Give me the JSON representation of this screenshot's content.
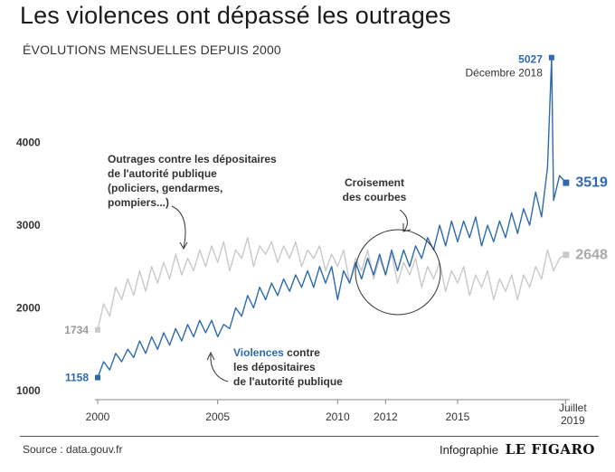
{
  "header": {
    "title": "Les violences ont dépassé les outrages",
    "subtitle": "ÉVOLUTIONS MENSUELLES DEPUIS 2000"
  },
  "footer": {
    "source": "Source : data.gouv.fr",
    "credit_prefix": "Infographie",
    "credit_brand": "LE FIGARO"
  },
  "chart_data": {
    "type": "line",
    "title": "Les violences ont dépassé les outrages",
    "subtitle": "ÉVOLUTIONS MENSUELLES DEPUIS 2000",
    "ylim": [
      1000,
      5100
    ],
    "yticks": [
      1000,
      2000,
      3000,
      4000
    ],
    "xlim": [
      2000,
      2019.6
    ],
    "xticks": [
      {
        "value": 2000,
        "label": "2000"
      },
      {
        "value": 2005,
        "label": "2005"
      },
      {
        "value": 2010,
        "label": "2010"
      },
      {
        "value": 2012,
        "label": "2012"
      },
      {
        "value": 2015,
        "label": "2015"
      }
    ],
    "x_end_label": [
      "Juillet",
      "2019"
    ],
    "grid": false,
    "colors": {
      "violences": "#2e6aad",
      "outrages": "#c9c9c9",
      "axis": "#888888"
    },
    "series": [
      {
        "key": "outrages",
        "name": "Outrages contre les dépositaires de l'autorité publique",
        "name_lines": [
          "Outrages contre les dépositaires",
          "de l'autorité publique",
          "(policiers, gendarmes,",
          "pompiers...)"
        ],
        "start_label": "1734",
        "end_label": "2648",
        "x_step": 0.25,
        "x": [
          2000.0,
          2000.25,
          2000.5,
          2000.75,
          2001.0,
          2001.25,
          2001.5,
          2001.75,
          2002.0,
          2002.25,
          2002.5,
          2002.75,
          2003.0,
          2003.25,
          2003.5,
          2003.75,
          2004.0,
          2004.25,
          2004.5,
          2004.75,
          2005.0,
          2005.25,
          2005.5,
          2005.75,
          2006.0,
          2006.25,
          2006.5,
          2006.75,
          2007.0,
          2007.25,
          2007.5,
          2007.75,
          2008.0,
          2008.25,
          2008.5,
          2008.75,
          2009.0,
          2009.25,
          2009.5,
          2009.75,
          2010.0,
          2010.25,
          2010.5,
          2010.75,
          2011.0,
          2011.25,
          2011.5,
          2011.75,
          2012.0,
          2012.25,
          2012.5,
          2012.75,
          2013.0,
          2013.25,
          2013.5,
          2013.75,
          2014.0,
          2014.25,
          2014.5,
          2014.75,
          2015.0,
          2015.25,
          2015.5,
          2015.75,
          2016.0,
          2016.25,
          2016.5,
          2016.75,
          2017.0,
          2017.25,
          2017.5,
          2017.75,
          2018.0,
          2018.25,
          2018.5,
          2018.75,
          2019.0,
          2019.25,
          2019.5
        ],
        "values": [
          1734,
          2050,
          1900,
          2250,
          2100,
          2350,
          2150,
          2450,
          2200,
          2500,
          2300,
          2550,
          2350,
          2650,
          2400,
          2600,
          2450,
          2700,
          2500,
          2750,
          2550,
          2800,
          2450,
          2700,
          2600,
          2850,
          2500,
          2750,
          2650,
          2800,
          2550,
          2750,
          2600,
          2800,
          2500,
          2700,
          2600,
          2750,
          2450,
          2650,
          2500,
          2700,
          2300,
          2600,
          2450,
          2700,
          2350,
          2600,
          2400,
          2650,
          2300,
          2550,
          2400,
          2600,
          2250,
          2500,
          2350,
          2550,
          2200,
          2450,
          2300,
          2500,
          2150,
          2400,
          2250,
          2450,
          2100,
          2350,
          2200,
          2400,
          2100,
          2400,
          2250,
          2500,
          2350,
          2700,
          2450,
          2600,
          2648
        ]
      },
      {
        "key": "violences",
        "name": "Violences contre les dépositaires de l'autorité publique",
        "name_lines": [
          "Violences contre",
          "les dépositaires",
          "de l'autorité publique"
        ],
        "start_label": "1158",
        "end_label": "3519",
        "peak": {
          "x": 2018.917,
          "value": 5027,
          "label": "5027",
          "sublabel": "Décembre 2018"
        },
        "x": [
          2000.0,
          2000.25,
          2000.5,
          2000.75,
          2001.0,
          2001.25,
          2001.5,
          2001.75,
          2002.0,
          2002.25,
          2002.5,
          2002.75,
          2003.0,
          2003.25,
          2003.5,
          2003.75,
          2004.0,
          2004.25,
          2004.5,
          2004.75,
          2005.0,
          2005.25,
          2005.5,
          2005.75,
          2006.0,
          2006.25,
          2006.5,
          2006.75,
          2007.0,
          2007.25,
          2007.5,
          2007.75,
          2008.0,
          2008.25,
          2008.5,
          2008.75,
          2009.0,
          2009.25,
          2009.5,
          2009.75,
          2010.0,
          2010.25,
          2010.5,
          2010.75,
          2011.0,
          2011.25,
          2011.5,
          2011.75,
          2012.0,
          2012.25,
          2012.5,
          2012.75,
          2013.0,
          2013.25,
          2013.5,
          2013.75,
          2014.0,
          2014.25,
          2014.5,
          2014.75,
          2015.0,
          2015.25,
          2015.5,
          2015.75,
          2016.0,
          2016.25,
          2016.5,
          2016.75,
          2017.0,
          2017.25,
          2017.5,
          2017.75,
          2018.0,
          2018.25,
          2018.5,
          2018.75,
          2018.917,
          2019.0,
          2019.25,
          2019.5
        ],
        "values": [
          1158,
          1350,
          1250,
          1450,
          1350,
          1500,
          1400,
          1600,
          1450,
          1650,
          1500,
          1700,
          1550,
          1750,
          1600,
          1800,
          1650,
          1850,
          1700,
          1850,
          1650,
          1800,
          1750,
          2000,
          1900,
          2150,
          2000,
          2250,
          2100,
          2300,
          2150,
          2350,
          2200,
          2400,
          2250,
          2450,
          2250,
          2500,
          2300,
          2500,
          2100,
          2450,
          2300,
          2550,
          2350,
          2600,
          2400,
          2650,
          2400,
          2700,
          2450,
          2700,
          2500,
          2750,
          2600,
          2850,
          2700,
          3000,
          2750,
          3050,
          2800,
          3050,
          2850,
          3100,
          2750,
          3000,
          2800,
          3050,
          2850,
          3150,
          2900,
          3200,
          3000,
          3400,
          3100,
          3700,
          5027,
          3300,
          3600,
          3519
        ]
      }
    ],
    "annotations": {
      "crossing": [
        "Croisement",
        "des courbes"
      ]
    }
  }
}
